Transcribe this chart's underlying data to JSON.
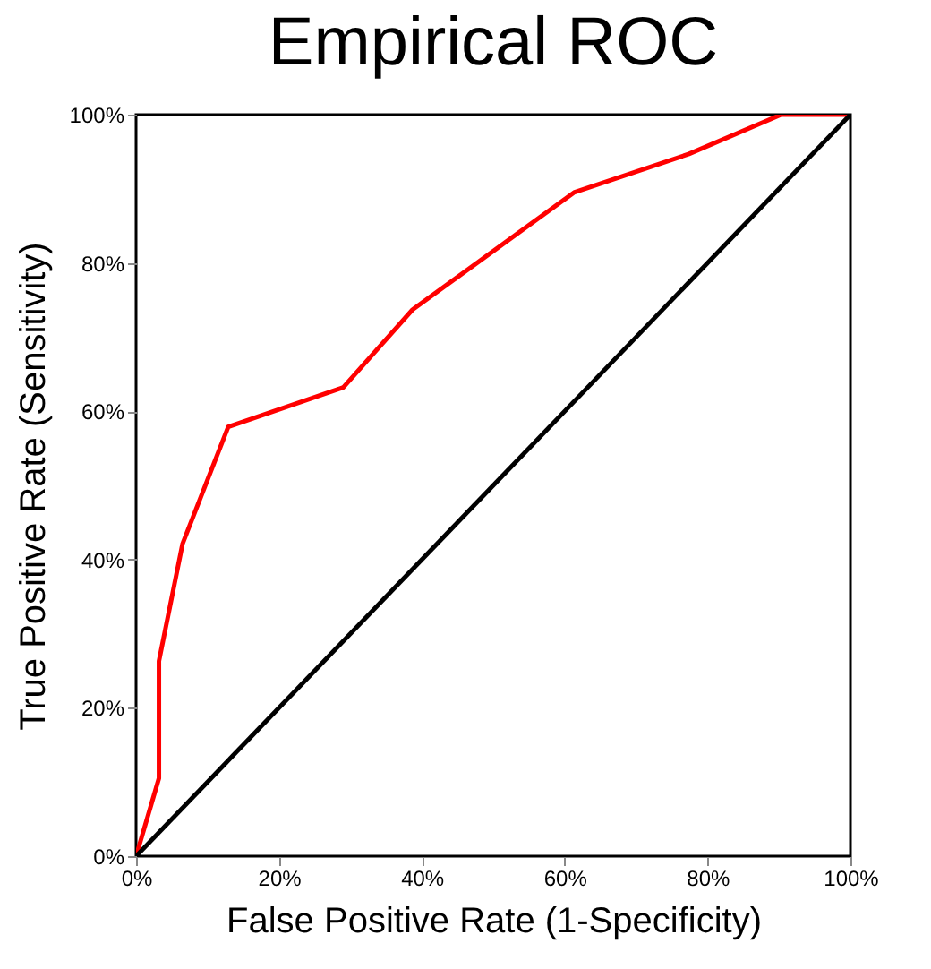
{
  "chart_data": {
    "type": "line",
    "title": "Empirical ROC",
    "xlabel": "False Positive Rate (1-Specificity)",
    "ylabel": "True Positive Rate (Sensitivity)",
    "series": [
      {
        "color": "#ff0000",
        "x": [
          0,
          3.2,
          3.2,
          6.5,
          12.9,
          29.0,
          38.7,
          61.3,
          77.4,
          90.3,
          100
        ],
        "values": [
          0,
          10.5,
          26.3,
          42.1,
          57.9,
          63.2,
          73.7,
          89.5,
          94.7,
          100,
          100
        ]
      },
      {
        "color": "#000000",
        "x": [
          0,
          100
        ],
        "values": [
          0,
          100
        ]
      }
    ],
    "xlim": [
      0,
      100
    ],
    "ylim": [
      0,
      100
    ],
    "xticks": [
      {
        "value": 0,
        "label": "0%"
      },
      {
        "value": 20,
        "label": "20%"
      },
      {
        "value": 40,
        "label": "40%"
      },
      {
        "value": 60,
        "label": "60%"
      },
      {
        "value": 80,
        "label": "80%"
      },
      {
        "value": 100,
        "label": "100%"
      }
    ],
    "yticks": [
      {
        "value": 0,
        "label": "0%"
      },
      {
        "value": 20,
        "label": "20%"
      },
      {
        "value": 40,
        "label": "40%"
      },
      {
        "value": 60,
        "label": "60%"
      },
      {
        "value": 80,
        "label": "80%"
      },
      {
        "value": 100,
        "label": "100%"
      }
    ],
    "grid": false,
    "marker": "none",
    "line_style": "solid"
  }
}
